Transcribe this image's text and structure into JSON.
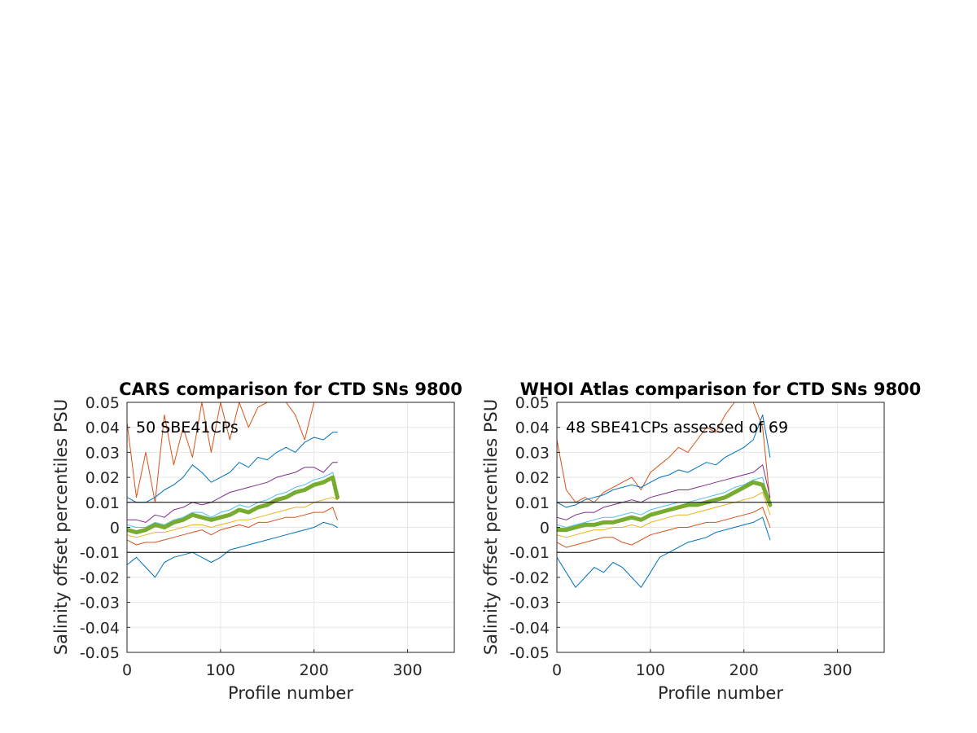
{
  "chart_data": [
    {
      "type": "line",
      "title": "CARS comparison for CTD SNs 9800",
      "xlabel": "Profile number",
      "ylabel": "Salinity offset percentiles PSU",
      "annotation": "50 SBE41CPs",
      "xlim": [
        0,
        350
      ],
      "ylim": [
        -0.05,
        0.05
      ],
      "xticks": [
        0,
        100,
        200,
        300
      ],
      "xtick_labels": [
        "0",
        "100",
        "200",
        "300"
      ],
      "yticks": [
        -0.05,
        -0.04,
        -0.03,
        -0.02,
        -0.01,
        0,
        0.01,
        0.02,
        0.03,
        0.04,
        0.05
      ],
      "ytick_labels": [
        "-0.05",
        "-0.04",
        "-0.03",
        "-0.02",
        "-0.01",
        "0",
        "0.01",
        "0.02",
        "0.03",
        "0.04",
        "0.05"
      ],
      "grid": true,
      "reference_lines": [
        0.01,
        -0.01
      ],
      "series": [
        {
          "color": "#D95319",
          "width": 1,
          "x": [
            0,
            10,
            20,
            30,
            40,
            50,
            60,
            70,
            80,
            90,
            100,
            110,
            120,
            130,
            140,
            150,
            160,
            170,
            180,
            190,
            200,
            210,
            220,
            225
          ],
          "y": [
            0.042,
            0.012,
            0.03,
            0.01,
            0.045,
            0.025,
            0.04,
            0.028,
            0.05,
            0.03,
            0.05,
            0.035,
            0.05,
            0.04,
            0.048,
            0.05,
            0.05,
            0.05,
            0.045,
            0.035,
            0.05,
            0.05,
            0.05,
            0.05
          ]
        },
        {
          "color": "#0072BD",
          "width": 1,
          "x": [
            0,
            10,
            20,
            30,
            40,
            50,
            60,
            70,
            80,
            90,
            100,
            110,
            120,
            130,
            140,
            150,
            160,
            170,
            180,
            190,
            200,
            210,
            220,
            225
          ],
          "y": [
            0.012,
            0.01,
            0.01,
            0.012,
            0.015,
            0.017,
            0.02,
            0.025,
            0.022,
            0.018,
            0.02,
            0.022,
            0.026,
            0.024,
            0.028,
            0.027,
            0.03,
            0.032,
            0.03,
            0.034,
            0.036,
            0.035,
            0.038,
            0.038
          ]
        },
        {
          "color": "#7E2F8E",
          "width": 1,
          "x": [
            0,
            10,
            20,
            30,
            40,
            50,
            60,
            70,
            80,
            90,
            100,
            110,
            120,
            130,
            140,
            150,
            160,
            170,
            180,
            190,
            200,
            210,
            220,
            225
          ],
          "y": [
            0.003,
            0.003,
            0.002,
            0.005,
            0.004,
            0.007,
            0.008,
            0.01,
            0.009,
            0.01,
            0.012,
            0.014,
            0.015,
            0.016,
            0.017,
            0.018,
            0.02,
            0.021,
            0.022,
            0.024,
            0.024,
            0.022,
            0.026,
            0.026
          ]
        },
        {
          "color": "#4DBEEE",
          "width": 1,
          "x": [
            0,
            10,
            20,
            30,
            40,
            50,
            60,
            70,
            80,
            90,
            100,
            110,
            120,
            130,
            140,
            150,
            160,
            170,
            180,
            190,
            200,
            210,
            220,
            225
          ],
          "y": [
            0.001,
            0.0,
            0.0,
            0.002,
            0.001,
            0.003,
            0.004,
            0.006,
            0.006,
            0.004,
            0.006,
            0.007,
            0.009,
            0.008,
            0.01,
            0.011,
            0.013,
            0.014,
            0.016,
            0.017,
            0.019,
            0.02,
            0.022,
            0.014
          ]
        },
        {
          "color": "#EDB120",
          "width": 1,
          "x": [
            0,
            10,
            20,
            30,
            40,
            50,
            60,
            70,
            80,
            90,
            100,
            110,
            120,
            130,
            140,
            150,
            160,
            170,
            180,
            190,
            200,
            210,
            220,
            225
          ],
          "y": [
            -0.003,
            -0.004,
            -0.003,
            -0.002,
            -0.002,
            -0.001,
            0.0,
            0.001,
            0.001,
            0.0,
            0.001,
            0.002,
            0.003,
            0.003,
            0.004,
            0.005,
            0.006,
            0.007,
            0.008,
            0.008,
            0.01,
            0.011,
            0.012,
            0.011
          ]
        },
        {
          "color": "#D95319",
          "width": 1,
          "x": [
            0,
            10,
            20,
            30,
            40,
            50,
            60,
            70,
            80,
            90,
            100,
            110,
            120,
            130,
            140,
            150,
            160,
            170,
            180,
            190,
            200,
            210,
            220,
            225
          ],
          "y": [
            -0.005,
            -0.007,
            -0.006,
            -0.006,
            -0.005,
            -0.004,
            -0.003,
            -0.002,
            -0.001,
            -0.003,
            -0.001,
            0.0,
            0.001,
            0.0,
            0.002,
            0.002,
            0.003,
            0.004,
            0.004,
            0.005,
            0.006,
            0.006,
            0.008,
            0.003
          ]
        },
        {
          "color": "#0072BD",
          "width": 1,
          "x": [
            0,
            10,
            20,
            30,
            40,
            50,
            60,
            70,
            80,
            90,
            100,
            110,
            120,
            130,
            140,
            150,
            160,
            170,
            180,
            190,
            200,
            210,
            220,
            225
          ],
          "y": [
            -0.015,
            -0.012,
            -0.016,
            -0.02,
            -0.014,
            -0.012,
            -0.011,
            -0.01,
            -0.012,
            -0.014,
            -0.012,
            -0.009,
            -0.008,
            -0.007,
            -0.006,
            -0.005,
            -0.004,
            -0.003,
            -0.002,
            -0.001,
            0.0,
            0.002,
            0.001,
            0.0
          ]
        },
        {
          "color": "#77AC30",
          "width": 5,
          "x": [
            0,
            10,
            20,
            30,
            40,
            50,
            60,
            70,
            80,
            90,
            100,
            110,
            120,
            130,
            140,
            150,
            160,
            170,
            180,
            190,
            200,
            210,
            220,
            225
          ],
          "y": [
            -0.001,
            -0.002,
            -0.001,
            0.001,
            0.0,
            0.002,
            0.003,
            0.005,
            0.004,
            0.003,
            0.004,
            0.005,
            0.007,
            0.006,
            0.008,
            0.009,
            0.011,
            0.012,
            0.014,
            0.015,
            0.017,
            0.018,
            0.02,
            0.012
          ]
        }
      ]
    },
    {
      "type": "line",
      "title": "WHOI Atlas comparison for CTD SNs 9800",
      "xlabel": "Profile number",
      "ylabel": "Salinity offset percentiles PSU",
      "annotation": "48 SBE41CPs assessed of 69",
      "xlim": [
        0,
        350
      ],
      "ylim": [
        -0.05,
        0.05
      ],
      "xticks": [
        0,
        100,
        200,
        300
      ],
      "xtick_labels": [
        "0",
        "100",
        "200",
        "300"
      ],
      "yticks": [
        -0.05,
        -0.04,
        -0.03,
        -0.02,
        -0.01,
        0,
        0.01,
        0.02,
        0.03,
        0.04,
        0.05
      ],
      "ytick_labels": [
        "-0.05",
        "-0.04",
        "-0.03",
        "-0.02",
        "-0.01",
        "0",
        "0.01",
        "0.02",
        "0.03",
        "0.04",
        "0.05"
      ],
      "grid": true,
      "reference_lines": [
        0.01,
        -0.01
      ],
      "series": [
        {
          "color": "#D95319",
          "width": 1,
          "x": [
            0,
            10,
            20,
            30,
            40,
            50,
            60,
            70,
            80,
            90,
            100,
            110,
            120,
            130,
            140,
            150,
            160,
            170,
            180,
            190,
            200,
            210,
            220,
            228
          ],
          "y": [
            0.035,
            0.015,
            0.01,
            0.012,
            0.01,
            0.014,
            0.016,
            0.018,
            0.02,
            0.015,
            0.022,
            0.025,
            0.028,
            0.032,
            0.03,
            0.035,
            0.04,
            0.038,
            0.045,
            0.05,
            0.05,
            0.05,
            0.04,
            0.01
          ]
        },
        {
          "color": "#0072BD",
          "width": 1,
          "x": [
            0,
            10,
            20,
            30,
            40,
            50,
            60,
            70,
            80,
            90,
            100,
            110,
            120,
            130,
            140,
            150,
            160,
            170,
            180,
            190,
            200,
            210,
            220,
            228
          ],
          "y": [
            0.01,
            0.008,
            0.009,
            0.011,
            0.012,
            0.013,
            0.015,
            0.016,
            0.017,
            0.016,
            0.018,
            0.02,
            0.021,
            0.023,
            0.022,
            0.024,
            0.026,
            0.025,
            0.028,
            0.03,
            0.032,
            0.035,
            0.045,
            0.028
          ]
        },
        {
          "color": "#7E2F8E",
          "width": 1,
          "x": [
            0,
            10,
            20,
            30,
            40,
            50,
            60,
            70,
            80,
            90,
            100,
            110,
            120,
            130,
            140,
            150,
            160,
            170,
            180,
            190,
            200,
            210,
            220,
            228
          ],
          "y": [
            0.004,
            0.003,
            0.005,
            0.006,
            0.006,
            0.008,
            0.009,
            0.01,
            0.011,
            0.01,
            0.012,
            0.013,
            0.014,
            0.015,
            0.015,
            0.016,
            0.017,
            0.018,
            0.019,
            0.02,
            0.021,
            0.022,
            0.025,
            0.012
          ]
        },
        {
          "color": "#4DBEEE",
          "width": 1,
          "x": [
            0,
            10,
            20,
            30,
            40,
            50,
            60,
            70,
            80,
            90,
            100,
            110,
            120,
            130,
            140,
            150,
            160,
            170,
            180,
            190,
            200,
            210,
            220,
            228
          ],
          "y": [
            0.001,
            0.0,
            0.001,
            0.002,
            0.003,
            0.004,
            0.004,
            0.005,
            0.006,
            0.005,
            0.007,
            0.008,
            0.009,
            0.01,
            0.01,
            0.011,
            0.012,
            0.013,
            0.014,
            0.016,
            0.017,
            0.019,
            0.02,
            0.008
          ]
        },
        {
          "color": "#EDB120",
          "width": 1,
          "x": [
            0,
            10,
            20,
            30,
            40,
            50,
            60,
            70,
            80,
            90,
            100,
            110,
            120,
            130,
            140,
            150,
            160,
            170,
            180,
            190,
            200,
            210,
            220,
            228
          ],
          "y": [
            -0.003,
            -0.004,
            -0.003,
            -0.002,
            -0.001,
            -0.001,
            0.0,
            0.0,
            0.001,
            0.0,
            0.002,
            0.003,
            0.004,
            0.005,
            0.005,
            0.006,
            0.007,
            0.008,
            0.009,
            0.01,
            0.011,
            0.012,
            0.014,
            0.005
          ]
        },
        {
          "color": "#D95319",
          "width": 1,
          "x": [
            0,
            10,
            20,
            30,
            40,
            50,
            60,
            70,
            80,
            90,
            100,
            110,
            120,
            130,
            140,
            150,
            160,
            170,
            180,
            190,
            200,
            210,
            220,
            228
          ],
          "y": [
            -0.006,
            -0.008,
            -0.007,
            -0.006,
            -0.005,
            -0.004,
            -0.004,
            -0.006,
            -0.007,
            -0.005,
            -0.003,
            -0.002,
            -0.001,
            0.0,
            0.0,
            0.001,
            0.002,
            0.002,
            0.003,
            0.004,
            0.005,
            0.006,
            0.008,
            0.0
          ]
        },
        {
          "color": "#0072BD",
          "width": 1,
          "x": [
            0,
            10,
            20,
            30,
            40,
            50,
            60,
            70,
            80,
            90,
            100,
            110,
            120,
            130,
            140,
            150,
            160,
            170,
            180,
            190,
            200,
            210,
            220,
            228
          ],
          "y": [
            -0.012,
            -0.018,
            -0.024,
            -0.02,
            -0.016,
            -0.018,
            -0.014,
            -0.016,
            -0.02,
            -0.024,
            -0.018,
            -0.012,
            -0.01,
            -0.008,
            -0.006,
            -0.005,
            -0.004,
            -0.002,
            -0.001,
            0.0,
            0.001,
            0.002,
            0.004,
            -0.005
          ]
        },
        {
          "color": "#77AC30",
          "width": 5,
          "x": [
            0,
            10,
            20,
            30,
            40,
            50,
            60,
            70,
            80,
            90,
            100,
            110,
            120,
            130,
            140,
            150,
            160,
            170,
            180,
            190,
            200,
            210,
            220,
            228
          ],
          "y": [
            -0.001,
            -0.001,
            0.0,
            0.001,
            0.001,
            0.002,
            0.002,
            0.003,
            0.004,
            0.003,
            0.005,
            0.006,
            0.007,
            0.008,
            0.009,
            0.009,
            0.01,
            0.011,
            0.012,
            0.014,
            0.016,
            0.018,
            0.017,
            0.009
          ]
        }
      ]
    }
  ]
}
